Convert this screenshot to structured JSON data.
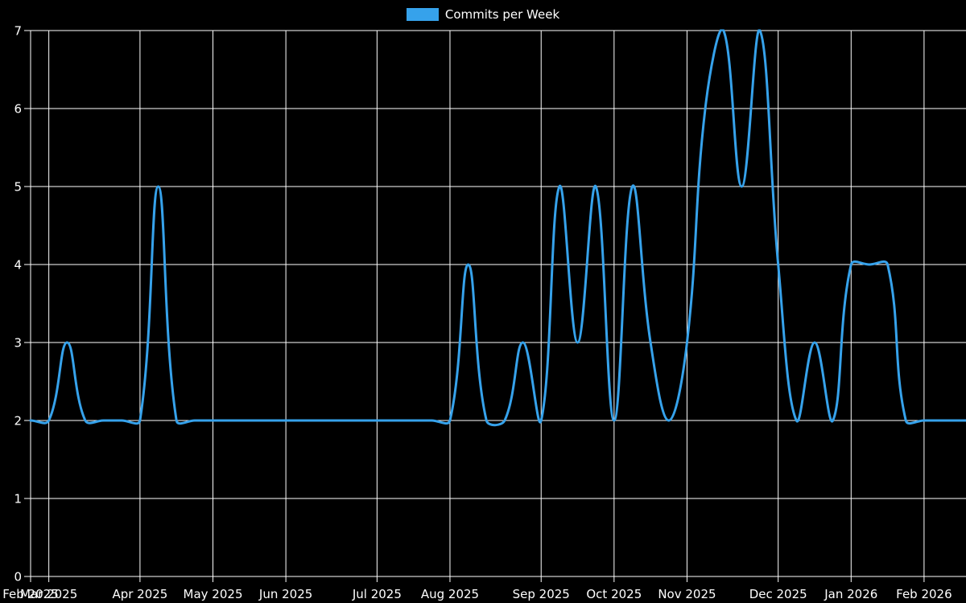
{
  "chart_data": {
    "type": "line",
    "title": "",
    "legend": {
      "label": "Commits per Week",
      "position": "top"
    },
    "series": [
      {
        "name": "Commits per Week",
        "color": "#36a2eb",
        "line_width": 3,
        "tension": 0.4,
        "values": [
          2,
          2,
          3,
          2,
          2,
          2,
          2,
          5,
          2,
          2,
          2,
          2,
          2,
          2,
          2,
          2,
          2,
          2,
          2,
          2,
          2,
          2,
          2,
          2,
          4,
          2,
          2,
          3,
          2,
          5,
          3,
          5,
          2,
          5,
          3,
          2,
          3,
          6,
          7,
          5,
          7,
          4,
          2,
          3,
          2,
          4,
          4,
          4,
          2,
          2,
          2,
          2
        ]
      }
    ],
    "x_axis": {
      "unit": "week",
      "num_points": 52,
      "month_ticks": [
        {
          "label": "Feb 2025",
          "week_index": 0
        },
        {
          "label": "Mar 2025",
          "week_index": 1
        },
        {
          "label": "Apr 2025",
          "week_index": 6
        },
        {
          "label": "May 2025",
          "week_index": 10
        },
        {
          "label": "Jun 2025",
          "week_index": 14
        },
        {
          "label": "Jul 2025",
          "week_index": 19
        },
        {
          "label": "Aug 2025",
          "week_index": 23
        },
        {
          "label": "Sep 2025",
          "week_index": 28
        },
        {
          "label": "Oct 2025",
          "week_index": 32
        },
        {
          "label": "Nov 2025",
          "week_index": 36
        },
        {
          "label": "Dec 2025",
          "week_index": 41
        },
        {
          "label": "Jan 2026",
          "week_index": 45
        },
        {
          "label": "Feb 2026",
          "week_index": 49
        }
      ]
    },
    "y_axis": {
      "min": 0,
      "max": 7,
      "tick_step": 1,
      "tick_labels": [
        "0",
        "1",
        "2",
        "3",
        "4",
        "5",
        "6",
        "7"
      ]
    },
    "grid": {
      "show": true,
      "color": "#ffffff"
    },
    "colors": {
      "background": "#000000",
      "text": "#ffffff",
      "axis": "#ffffff",
      "accent": "#36a2eb"
    }
  }
}
